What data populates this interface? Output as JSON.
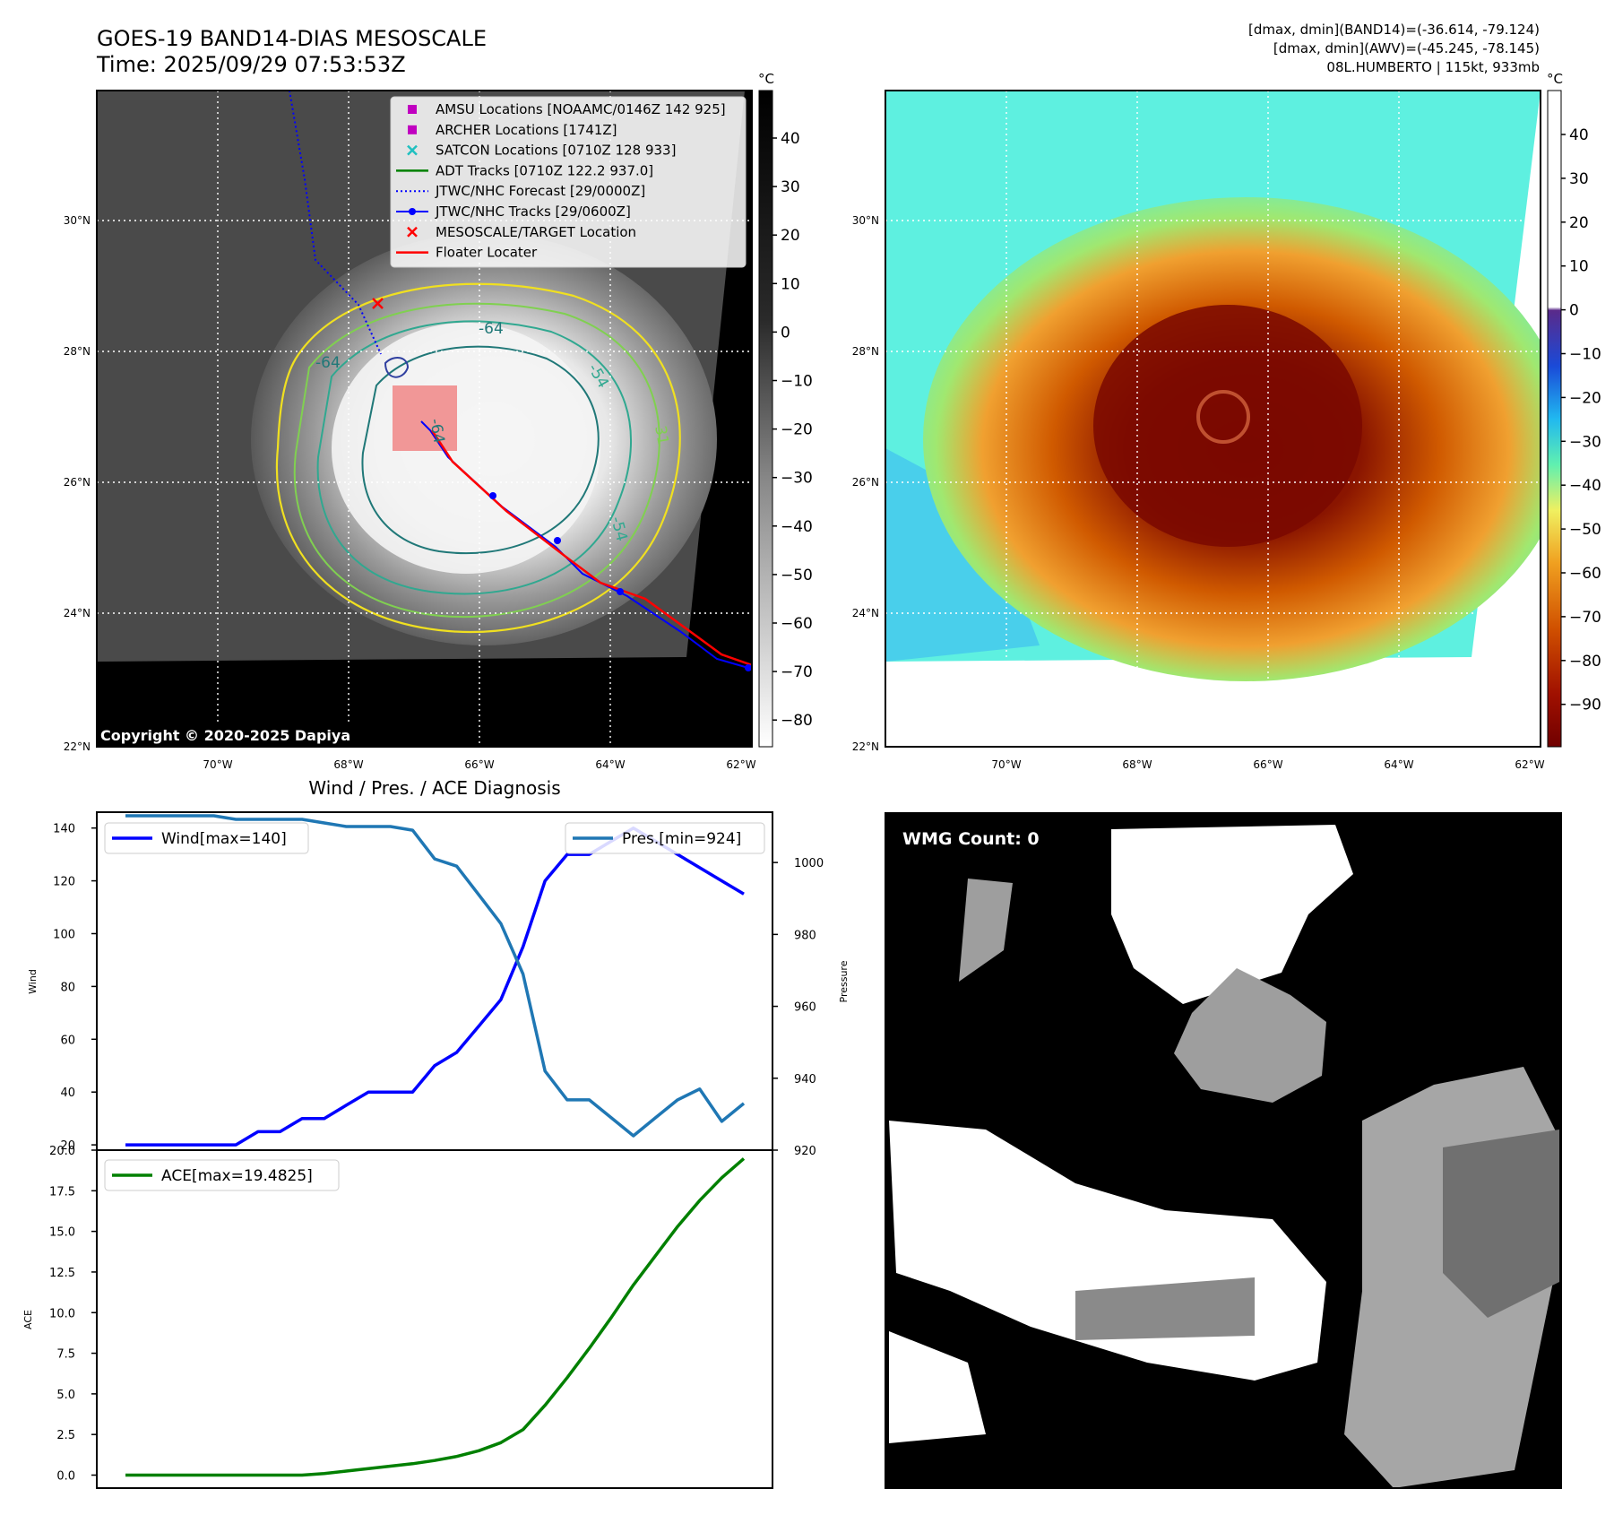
{
  "header": {
    "title_line1": "GOES-19 BAND14-DIAS MESOSCALE",
    "title_line2": "Time: 2025/09/29 07:53:53Z",
    "info_line1": "[dmax, dmin](BAND14)=(-36.614, -79.124)",
    "info_line2": "[dmax, dmin](AWV)=(-45.245, -78.145)",
    "info_line3": "08L.HUMBERTO | 115kt, 933mb"
  },
  "map": {
    "lat_labels": [
      "30°N",
      "28°N",
      "26°N",
      "24°N",
      "22°N"
    ],
    "lon_labels": [
      "70°W",
      "68°W",
      "66°W",
      "64°W",
      "62°W"
    ],
    "copyright": "Copyright © 2020-2025 Dapiya",
    "contour_labels": [
      "-64",
      "-54",
      "-64",
      "-64",
      "-54",
      "-31"
    ],
    "legend": [
      {
        "label": "AMSU Locations [NOAAMC/0146Z 142 925]",
        "marker": "square",
        "color": "#c000c0"
      },
      {
        "label": "ARCHER Locations [1741Z]",
        "marker": "square",
        "color": "#c000c0"
      },
      {
        "label": "SATCON Locations [0710Z 128 933]",
        "marker": "x",
        "color": "#20c0c0"
      },
      {
        "label": "ADT Tracks [0710Z 122.2 937.0]",
        "marker": "line",
        "color": "#008000"
      },
      {
        "label": "JTWC/NHC Forecast [29/0000Z]",
        "marker": "dotted",
        "color": "#0000ff"
      },
      {
        "label": "JTWC/NHC Tracks [29/0600Z]",
        "marker": "line-dot",
        "color": "#0000ff"
      },
      {
        "label": "MESOSCALE/TARGET Location",
        "marker": "x",
        "color": "#ff0000"
      },
      {
        "label": "Floater Locater",
        "marker": "line",
        "color": "#ff0000"
      }
    ]
  },
  "colorbar_ir": {
    "unit": "°C",
    "ticks": [
      "40",
      "30",
      "20",
      "10",
      "0",
      "−10",
      "−20",
      "−30",
      "−40",
      "−50",
      "−60",
      "−70",
      "−80"
    ]
  },
  "colorbar_awv": {
    "unit": "°C",
    "ticks": [
      "40",
      "30",
      "20",
      "10",
      "0",
      "−10",
      "−20",
      "−30",
      "−40",
      "−50",
      "−60",
      "−70",
      "−80",
      "−90"
    ]
  },
  "chart_data": [
    {
      "type": "line",
      "title": "Wind / Pres. / ACE Diagnosis",
      "ylabel": "Wind",
      "ylabel_right": "Pressure",
      "ylim": [
        18,
        146
      ],
      "ylim_right": [
        920,
        1014
      ],
      "yticks": [
        "140",
        "120",
        "100",
        "80",
        "60",
        "40",
        "20"
      ],
      "yticks_right": [
        "1000",
        "980",
        "960",
        "940",
        "920"
      ],
      "series": [
        {
          "name": "Wind[max=140]",
          "color": "#0000ff",
          "axis": "left",
          "values": [
            20,
            20,
            20,
            20,
            20,
            20,
            25,
            25,
            30,
            30,
            35,
            40,
            40,
            40,
            50,
            55,
            65,
            75,
            95,
            120,
            130,
            130,
            135,
            140,
            135,
            130,
            125,
            120,
            115
          ]
        },
        {
          "name": "Pres.[min=924]",
          "color": "#1f77b4",
          "axis": "right",
          "values": [
            1013,
            1013,
            1013,
            1013,
            1013,
            1012,
            1012,
            1012,
            1012,
            1011,
            1010,
            1010,
            1010,
            1009,
            1001,
            999,
            991,
            983,
            969,
            942,
            934,
            934,
            929,
            924,
            929,
            934,
            937,
            928,
            933
          ]
        }
      ]
    },
    {
      "type": "line",
      "ylabel": "ACE",
      "ylim": [
        -0.8,
        20.0
      ],
      "yticks": [
        "20.0",
        "17.5",
        "15.0",
        "12.5",
        "10.0",
        "7.5",
        "5.0",
        "2.5",
        "0.0"
      ],
      "series": [
        {
          "name": "ACE[max=19.4825]",
          "color": "#008000",
          "values": [
            0,
            0,
            0,
            0,
            0,
            0,
            0,
            0,
            0,
            0.1,
            0.25,
            0.4,
            0.55,
            0.7,
            0.9,
            1.15,
            1.5,
            2.0,
            2.8,
            4.3,
            6.0,
            7.8,
            9.7,
            11.7,
            13.5,
            15.3,
            16.9,
            18.3,
            19.48
          ]
        }
      ]
    }
  ],
  "wmg": {
    "label": "WMG Count: 0"
  }
}
